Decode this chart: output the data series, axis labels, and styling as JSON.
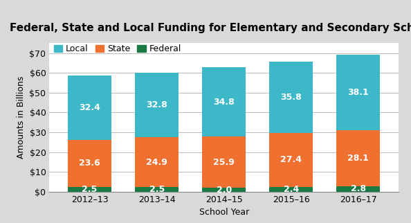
{
  "title": "Federal, State and Local Funding for Elementary and Secondary Schools",
  "categories": [
    "2012–13",
    "2013–14",
    "2014–15",
    "2015–16",
    "2016–17"
  ],
  "federal": [
    2.5,
    2.5,
    2.0,
    2.4,
    2.8
  ],
  "state": [
    23.6,
    24.9,
    25.9,
    27.4,
    28.1
  ],
  "local": [
    32.4,
    32.8,
    34.8,
    35.8,
    38.1
  ],
  "color_local": "#3db8c8",
  "color_state": "#f07030",
  "color_federal": "#1a7a45",
  "xlabel": "School Year",
  "ylabel": "Amounts in Billions",
  "ylim": [
    0,
    75
  ],
  "yticks": [
    0,
    10,
    20,
    30,
    40,
    50,
    60,
    70
  ],
  "ytick_labels": [
    "$0",
    "$10",
    "$20",
    "$30",
    "$40",
    "$50",
    "$60",
    "$70"
  ],
  "legend_labels": [
    "Local",
    "State",
    "Federal"
  ],
  "title_fontsize": 11,
  "label_fontsize": 9,
  "tick_fontsize": 9,
  "legend_fontsize": 9,
  "bar_width": 0.65,
  "title_bg_color": "#d9d9d9",
  "plot_bg_color": "#ffffff",
  "fig_bg_color": "#d9d9d9",
  "text_color_bar": "#ffffff",
  "bar_label_fontsize": 9,
  "grid_color": "#bbbbbb"
}
